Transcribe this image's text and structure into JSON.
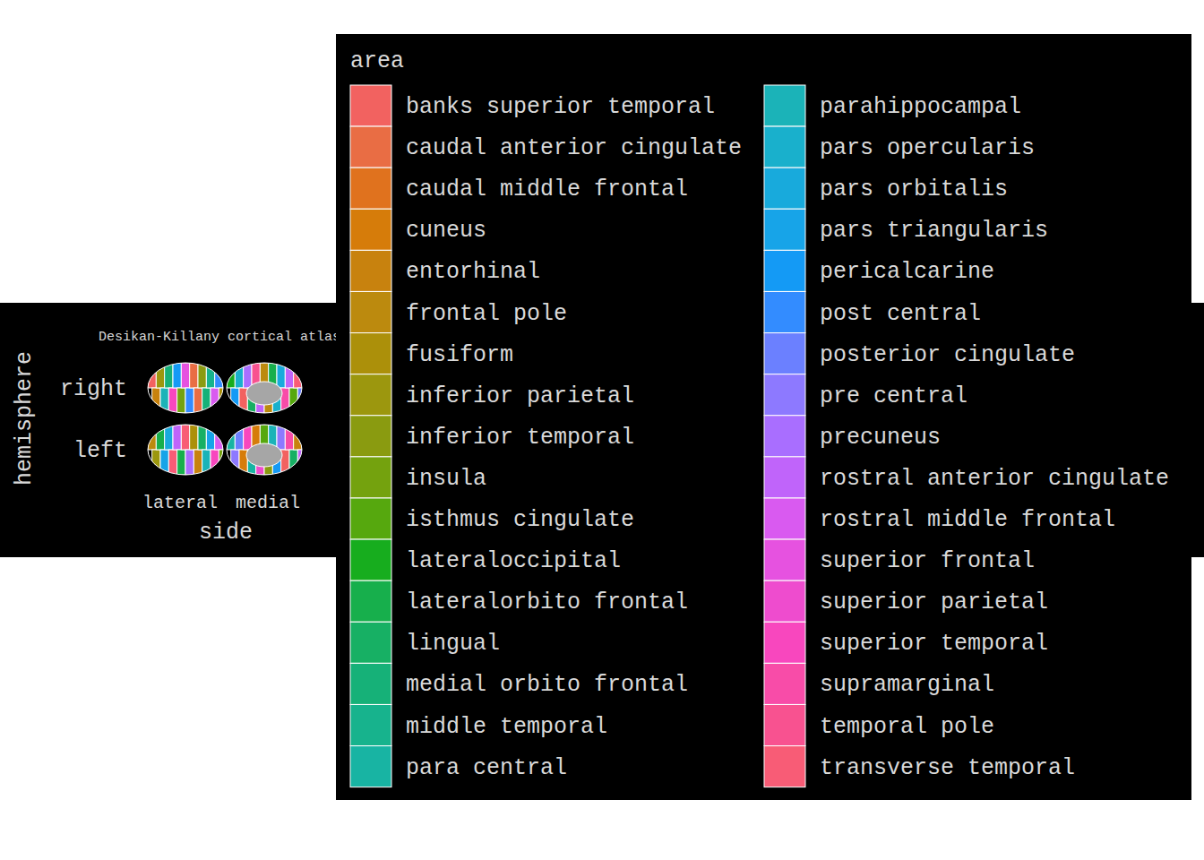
{
  "chart_data": {
    "type": "atlas",
    "title": "Desikan-Killany cortical atlas",
    "x_label": "side",
    "y_label": "hemisphere",
    "x_categories": [
      "lateral",
      "medial"
    ],
    "y_categories": [
      "right",
      "left"
    ],
    "legend_title": "area",
    "legend": "right",
    "series": [
      {
        "name": "banks superior temporal",
        "color": "#F26260"
      },
      {
        "name": "caudal anterior cingulate",
        "color": "#E96D44"
      },
      {
        "name": "caudal middle frontal",
        "color": "#E0721E"
      },
      {
        "name": "cuneus",
        "color": "#D67C0A"
      },
      {
        "name": "entorhinal",
        "color": "#C8820E"
      },
      {
        "name": "frontal pole",
        "color": "#BC8A0E"
      },
      {
        "name": "fusiform",
        "color": "#AC900A"
      },
      {
        "name": "inferior parietal",
        "color": "#9C970E"
      },
      {
        "name": "inferior temporal",
        "color": "#8A9B10"
      },
      {
        "name": "insula",
        "color": "#74A20E"
      },
      {
        "name": "isthmus cingulate",
        "color": "#56A80E"
      },
      {
        "name": "lateraloccipital",
        "color": "#17AD1E"
      },
      {
        "name": "lateralorbito frontal",
        "color": "#17AF4C"
      },
      {
        "name": "lingual",
        "color": "#17B064"
      },
      {
        "name": "medial orbito frontal",
        "color": "#16B178"
      },
      {
        "name": "middle temporal",
        "color": "#17B38D"
      },
      {
        "name": "para central",
        "color": "#18B4A3"
      },
      {
        "name": "parahippocampal",
        "color": "#1BB3B8"
      },
      {
        "name": "pars opercularis",
        "color": "#19B0CC"
      },
      {
        "name": "pars orbitalis",
        "color": "#18AADC"
      },
      {
        "name": "pars triangularis",
        "color": "#17A4E8"
      },
      {
        "name": "pericalcarine",
        "color": "#149AF5"
      },
      {
        "name": "post central",
        "color": "#338CFF"
      },
      {
        "name": "posterior cingulate",
        "color": "#6B80FF"
      },
      {
        "name": "pre central",
        "color": "#8D79FF"
      },
      {
        "name": "precuneus",
        "color": "#A96EFF"
      },
      {
        "name": "rostral anterior cingulate",
        "color": "#C064FA"
      },
      {
        "name": "rostral middle frontal",
        "color": "#D95AF0"
      },
      {
        "name": "superior frontal",
        "color": "#E652E0"
      },
      {
        "name": "superior parietal",
        "color": "#EE4CCE"
      },
      {
        "name": "superior temporal",
        "color": "#F847BE"
      },
      {
        "name": "supramarginal",
        "color": "#F84CA8"
      },
      {
        "name": "temporal pole",
        "color": "#F85290"
      },
      {
        "name": "transverse temporal",
        "color": "#F85C76"
      }
    ]
  }
}
